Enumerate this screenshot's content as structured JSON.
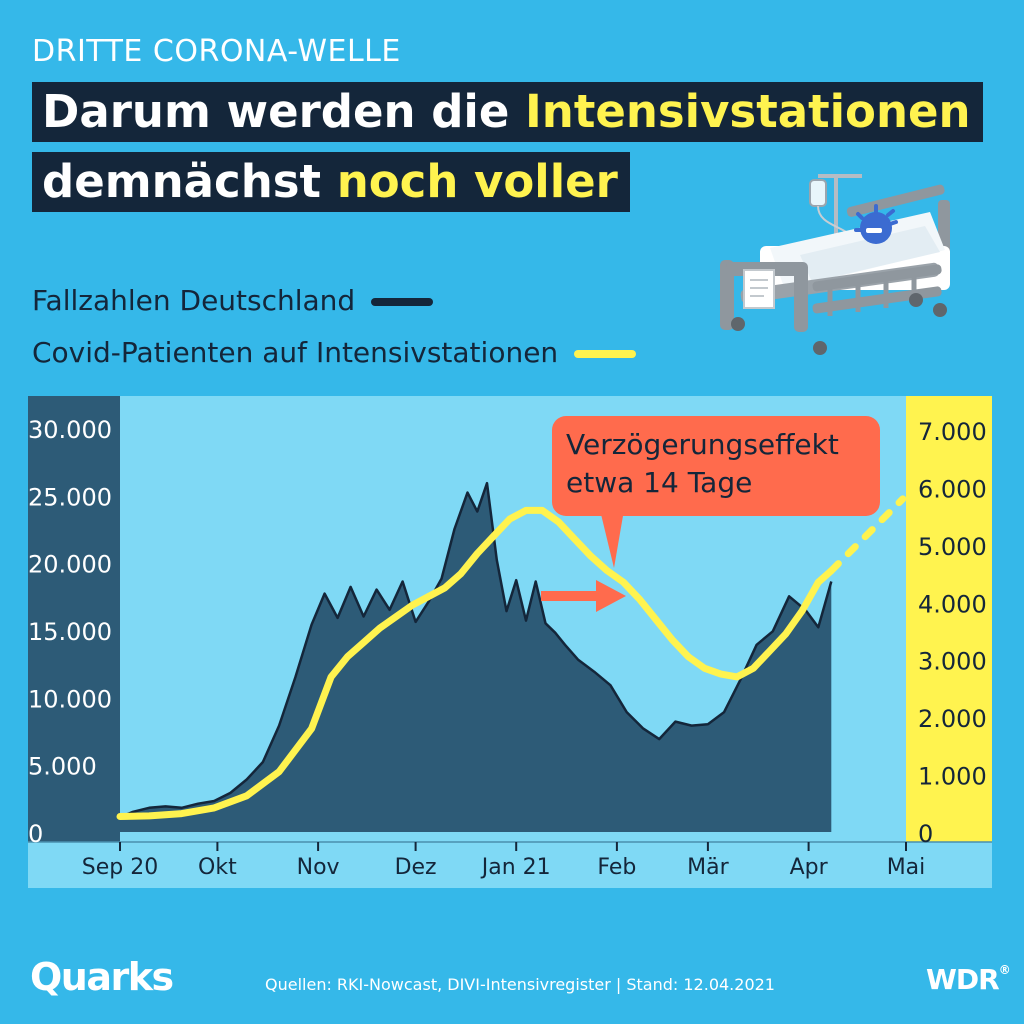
{
  "header": {
    "kicker": "DRITTE CORONA-WELLE",
    "headline_line1_a": "Darum werden die ",
    "headline_line1_b": "Intensivstationen",
    "headline_line2_a": "demnächst ",
    "headline_line2_b": "noch voller"
  },
  "legend": {
    "cases_label": "Fallzahlen Deutschland",
    "icu_label": "Covid-Patienten auf Intensivstationen"
  },
  "annotation": {
    "line1": "Verzögerungseffekt",
    "line2": "etwa 14 Tage"
  },
  "footer": {
    "sources": "Quellen: RKI-Nowcast, DIVI-Intensivregister | Stand: 12.04.2021",
    "logo_left": "Quarks",
    "logo_right": "WDR"
  },
  "colors": {
    "background": "#35b8e9",
    "plot_background": "#7fd9f5",
    "cases_fill": "#2d5b77",
    "cases_line": "#14263a",
    "icu_line": "#fff34f",
    "annotation": "#ff6b4d",
    "left_axis_band": "#2d5b77",
    "right_axis_band": "#fff34f"
  },
  "chart_data": {
    "type": "area",
    "x_tick_labels": [
      "Sep 20",
      "Okt",
      "Nov",
      "Dez",
      "Jan 21",
      "Feb",
      "Mär",
      "Apr",
      "Mai"
    ],
    "y_left_ticks": [
      "30.000",
      "25.000",
      "20.000",
      "15.000",
      "10.000",
      "5.000",
      "0"
    ],
    "y_left_range": [
      0,
      30000
    ],
    "y_right_ticks": [
      "7.000",
      "6.000",
      "5.000",
      "4.000",
      "3.000",
      "2.000",
      "1.000",
      "0"
    ],
    "y_right_range": [
      0,
      7000
    ],
    "series": [
      {
        "name": "Fallzahlen Deutschland",
        "axis": "left",
        "x": [
          "2020-09-01",
          "2020-09-05",
          "2020-09-10",
          "2020-09-15",
          "2020-09-20",
          "2020-09-25",
          "2020-09-30",
          "2020-10-05",
          "2020-10-10",
          "2020-10-15",
          "2020-10-20",
          "2020-10-25",
          "2020-10-30",
          "2020-11-03",
          "2020-11-07",
          "2020-11-11",
          "2020-11-15",
          "2020-11-19",
          "2020-11-23",
          "2020-11-27",
          "2020-12-01",
          "2020-12-05",
          "2020-12-09",
          "2020-12-13",
          "2020-12-17",
          "2020-12-20",
          "2020-12-23",
          "2020-12-26",
          "2020-12-29",
          "2021-01-01",
          "2021-01-04",
          "2021-01-07",
          "2021-01-10",
          "2021-01-13",
          "2021-01-16",
          "2021-01-20",
          "2021-01-25",
          "2021-01-30",
          "2021-02-04",
          "2021-02-09",
          "2021-02-14",
          "2021-02-19",
          "2021-02-24",
          "2021-03-01",
          "2021-03-06",
          "2021-03-11",
          "2021-03-16",
          "2021-03-21",
          "2021-03-26",
          "2021-03-31",
          "2021-04-04",
          "2021-04-08"
        ],
        "values": [
          1100,
          1500,
          1800,
          1900,
          1800,
          2100,
          2300,
          2900,
          3900,
          5200,
          7900,
          11500,
          15400,
          17700,
          15900,
          18200,
          16000,
          18000,
          16500,
          18600,
          15600,
          17100,
          18800,
          22500,
          25200,
          23800,
          25900,
          20200,
          16400,
          18700,
          15700,
          18600,
          15500,
          14800,
          13900,
          12800,
          11900,
          10900,
          8900,
          7700,
          6900,
          8200,
          7900,
          8000,
          8900,
          11300,
          13900,
          14900,
          17500,
          16500,
          15200,
          18600
        ]
      },
      {
        "name": "Covid-Patienten auf Intensivstationen",
        "axis": "right",
        "x": [
          "2020-09-01",
          "2020-09-10",
          "2020-09-20",
          "2020-09-30",
          "2020-10-10",
          "2020-10-20",
          "2020-10-30",
          "2020-11-05",
          "2020-11-10",
          "2020-11-15",
          "2020-11-20",
          "2020-11-25",
          "2020-11-30",
          "2020-12-05",
          "2020-12-10",
          "2020-12-15",
          "2020-12-20",
          "2020-12-25",
          "2020-12-30",
          "2021-01-04",
          "2021-01-09",
          "2021-01-14",
          "2021-01-19",
          "2021-01-24",
          "2021-01-29",
          "2021-02-03",
          "2021-02-08",
          "2021-02-13",
          "2021-02-18",
          "2021-02-23",
          "2021-02-28",
          "2021-03-05",
          "2021-03-10",
          "2021-03-15",
          "2021-03-20",
          "2021-03-25",
          "2021-03-30",
          "2021-04-04",
          "2021-04-08"
        ],
        "values": [
          270,
          280,
          320,
          420,
          630,
          1050,
          1800,
          2700,
          3050,
          3300,
          3550,
          3750,
          3950,
          4100,
          4250,
          4500,
          4850,
          5150,
          5450,
          5600,
          5600,
          5400,
          5100,
          4800,
          4550,
          4350,
          4050,
          3700,
          3350,
          3050,
          2850,
          2750,
          2700,
          2850,
          3150,
          3450,
          3850,
          4350,
          4550
        ]
      },
      {
        "name": "Covid-Patienten auf Intensivstationen (Prognose)",
        "axis": "right",
        "x": [
          "2021-04-08",
          "2021-04-30"
        ],
        "values": [
          4550,
          5800
        ]
      }
    ],
    "annotation": {
      "text": "Verzögerungseffekt etwa 14 Tage",
      "lag_days": 14
    },
    "grid": false
  }
}
